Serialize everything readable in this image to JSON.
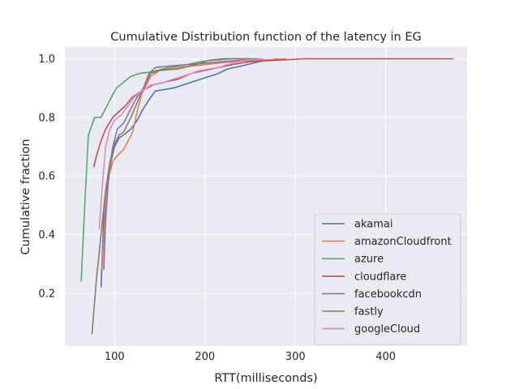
{
  "chart_data": {
    "type": "line",
    "title": "Cumulative Distribution function of the latency in EG",
    "xlabel": "RTT(milliseconds)",
    "ylabel": "Cumulative fraction",
    "xlim": [
      45,
      490
    ],
    "ylim": [
      0.02,
      1.04
    ],
    "xticks": [
      {
        "value": 100,
        "label": "100"
      },
      {
        "value": 200,
        "label": "200"
      },
      {
        "value": 300,
        "label": "300"
      },
      {
        "value": 400,
        "label": "400"
      }
    ],
    "yticks": [
      {
        "value": 0.2,
        "label": "0.2"
      },
      {
        "value": 0.4,
        "label": "0.4"
      },
      {
        "value": 0.6,
        "label": "0.6"
      },
      {
        "value": 0.8,
        "label": "0.8"
      },
      {
        "value": 1.0,
        "label": "1.0"
      }
    ],
    "grid": true,
    "background": "#eaeaf2",
    "legend_position": "lower-right",
    "series": [
      {
        "name": "akamai",
        "color": "#4c72b0",
        "points": [
          [
            85,
            0.22
          ],
          [
            88,
            0.45
          ],
          [
            92,
            0.56
          ],
          [
            96,
            0.65
          ],
          [
            100,
            0.7
          ],
          [
            105,
            0.73
          ],
          [
            110,
            0.74
          ],
          [
            118,
            0.76
          ],
          [
            125,
            0.79
          ],
          [
            130,
            0.82
          ],
          [
            138,
            0.86
          ],
          [
            145,
            0.89
          ],
          [
            155,
            0.895
          ],
          [
            165,
            0.9
          ],
          [
            180,
            0.915
          ],
          [
            195,
            0.93
          ],
          [
            205,
            0.94
          ],
          [
            215,
            0.95
          ],
          [
            225,
            0.965
          ],
          [
            240,
            0.975
          ],
          [
            260,
            0.99
          ],
          [
            280,
            1.0
          ]
        ]
      },
      {
        "name": "amazonCloudfront",
        "color": "#dd8452",
        "points": [
          [
            86,
            0.28
          ],
          [
            90,
            0.5
          ],
          [
            94,
            0.6
          ],
          [
            98,
            0.65
          ],
          [
            103,
            0.67
          ],
          [
            110,
            0.69
          ],
          [
            115,
            0.72
          ],
          [
            120,
            0.75
          ],
          [
            125,
            0.82
          ],
          [
            130,
            0.88
          ],
          [
            140,
            0.94
          ],
          [
            150,
            0.96
          ],
          [
            170,
            0.97
          ],
          [
            200,
            0.98
          ],
          [
            230,
            0.99
          ],
          [
            260,
            0.995
          ],
          [
            290,
            1.0
          ]
        ]
      },
      {
        "name": "azure",
        "color": "#55a868",
        "points": [
          [
            63,
            0.24
          ],
          [
            67,
            0.5
          ],
          [
            71,
            0.74
          ],
          [
            78,
            0.8
          ],
          [
            85,
            0.8
          ],
          [
            95,
            0.86
          ],
          [
            102,
            0.9
          ],
          [
            110,
            0.92
          ],
          [
            118,
            0.94
          ],
          [
            128,
            0.95
          ],
          [
            140,
            0.955
          ],
          [
            160,
            0.97
          ],
          [
            180,
            0.98
          ],
          [
            195,
            0.99
          ],
          [
            210,
            0.995
          ],
          [
            230,
            1.0
          ],
          [
            260,
            1.0
          ]
        ]
      },
      {
        "name": "cloudflare",
        "color": "#c44e52",
        "points": [
          [
            77,
            0.63
          ],
          [
            80,
            0.67
          ],
          [
            85,
            0.72
          ],
          [
            90,
            0.76
          ],
          [
            98,
            0.8
          ],
          [
            105,
            0.82
          ],
          [
            112,
            0.84
          ],
          [
            120,
            0.87
          ],
          [
            130,
            0.89
          ],
          [
            142,
            0.91
          ],
          [
            155,
            0.92
          ],
          [
            170,
            0.93
          ],
          [
            185,
            0.95
          ],
          [
            200,
            0.96
          ],
          [
            215,
            0.97
          ],
          [
            230,
            0.98
          ],
          [
            250,
            0.99
          ],
          [
            280,
            0.995
          ],
          [
            310,
            1.0
          ],
          [
            400,
            1.0
          ],
          [
            455,
            1.0
          ],
          [
            475,
            1.0
          ]
        ]
      },
      {
        "name": "facebookcdn",
        "color": "#8172b3",
        "points": [
          [
            88,
            0.28
          ],
          [
            90,
            0.45
          ],
          [
            94,
            0.62
          ],
          [
            98,
            0.7
          ],
          [
            103,
            0.76
          ],
          [
            110,
            0.78
          ],
          [
            118,
            0.83
          ],
          [
            125,
            0.87
          ],
          [
            132,
            0.9
          ],
          [
            138,
            0.95
          ],
          [
            145,
            0.97
          ],
          [
            160,
            0.975
          ],
          [
            180,
            0.98
          ],
          [
            200,
            0.985
          ],
          [
            220,
            0.99
          ],
          [
            240,
            0.995
          ],
          [
            260,
            1.0
          ]
        ]
      },
      {
        "name": "fastly",
        "color": "#937860",
        "points": [
          [
            75,
            0.06
          ],
          [
            80,
            0.25
          ],
          [
            85,
            0.4
          ],
          [
            90,
            0.55
          ],
          [
            95,
            0.65
          ],
          [
            100,
            0.71
          ],
          [
            105,
            0.74
          ],
          [
            110,
            0.75
          ],
          [
            118,
            0.8
          ],
          [
            125,
            0.85
          ],
          [
            132,
            0.9
          ],
          [
            140,
            0.95
          ],
          [
            150,
            0.96
          ],
          [
            170,
            0.965
          ],
          [
            190,
            0.98
          ],
          [
            205,
            0.995
          ],
          [
            220,
            1.0
          ],
          [
            250,
            1.0
          ]
        ]
      },
      {
        "name": "googleCloud",
        "color": "#da8bc3",
        "points": [
          [
            83,
            0.42
          ],
          [
            86,
            0.55
          ],
          [
            90,
            0.7
          ],
          [
            95,
            0.76
          ],
          [
            100,
            0.79
          ],
          [
            108,
            0.81
          ],
          [
            115,
            0.84
          ],
          [
            122,
            0.87
          ],
          [
            130,
            0.89
          ],
          [
            140,
            0.91
          ],
          [
            150,
            0.915
          ],
          [
            165,
            0.93
          ],
          [
            175,
            0.94
          ],
          [
            185,
            0.95
          ],
          [
            195,
            0.96
          ],
          [
            205,
            0.965
          ],
          [
            215,
            0.97
          ],
          [
            230,
            0.985
          ],
          [
            245,
            0.995
          ],
          [
            265,
            1.0
          ]
        ]
      }
    ]
  }
}
